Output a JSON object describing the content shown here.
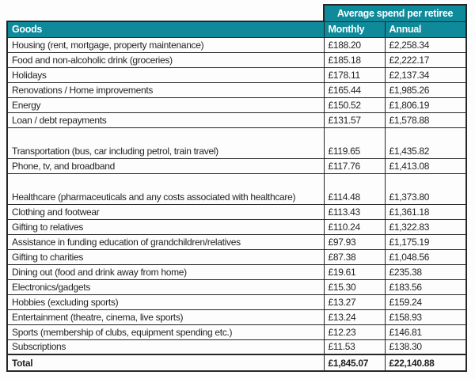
{
  "chart_data": {
    "type": "table",
    "title": "Average spend per retiree",
    "columns": [
      "Goods",
      "Monthly",
      "Annual"
    ],
    "rows": [
      {
        "goods": "Housing (rent, mortgage, property maintenance)",
        "monthly": "£188.20",
        "annual": "£2,258.34",
        "tall": false
      },
      {
        "goods": "Food and non-alcoholic drink (groceries)",
        "monthly": "£185.18",
        "annual": "£2,222.17",
        "tall": false
      },
      {
        "goods": "Holidays",
        "monthly": "£178.11",
        "annual": "£2,137.34",
        "tall": false
      },
      {
        "goods": "Renovations / Home improvements",
        "monthly": "£165.44",
        "annual": "£1,985.26",
        "tall": false
      },
      {
        "goods": "Energy",
        "monthly": "£150.52",
        "annual": "£1,806.19",
        "tall": false
      },
      {
        "goods": "Loan / debt repayments",
        "monthly": "£131.57",
        "annual": "£1,578.88",
        "tall": false
      },
      {
        "goods": "Transportation (bus, car including petrol, train travel)",
        "monthly": "£119.65",
        "annual": "£1,435.82",
        "tall": true
      },
      {
        "goods": "Phone, tv, and broadband",
        "monthly": "£117.76",
        "annual": "£1,413.08",
        "tall": false
      },
      {
        "goods": "Healthcare (pharmaceuticals and any costs associated with healthcare)",
        "monthly": "£114.48",
        "annual": "£1,373.80",
        "tall": true
      },
      {
        "goods": "Clothing and footwear",
        "monthly": "£113.43",
        "annual": "£1,361.18",
        "tall": false
      },
      {
        "goods": "Gifting to relatives",
        "monthly": "£110.24",
        "annual": "£1,322.83",
        "tall": false
      },
      {
        "goods": "Assistance in funding education of grandchildren/relatives",
        "monthly": "£97.93",
        "annual": "£1,175.19",
        "tall": false
      },
      {
        "goods": "Gifting to charities",
        "monthly": "£87.38",
        "annual": "£1,048.56",
        "tall": false
      },
      {
        "goods": "Dining out (food and drink away from home)",
        "monthly": "£19.61",
        "annual": "£235.38",
        "tall": false
      },
      {
        "goods": "Electronics/gadgets",
        "monthly": "£15.30",
        "annual": "£183.56",
        "tall": false
      },
      {
        "goods": "Hobbies (excluding sports)",
        "monthly": "£13.27",
        "annual": "£159.24",
        "tall": false
      },
      {
        "goods": "Entertainment (theatre, cinema, live sports)",
        "monthly": "£13.24",
        "annual": "£158.93",
        "tall": false
      },
      {
        "goods": "Sports (membership of clubs, equipment spending etc.)",
        "monthly": "£12.23",
        "annual": "£146.81",
        "tall": false
      },
      {
        "goods": "Subscriptions",
        "monthly": "£11.53",
        "annual": "£138.30",
        "tall": false
      }
    ],
    "total": {
      "goods": "Total",
      "monthly": "£1,845.07",
      "annual": "£22,140.88"
    },
    "legend_position": "none",
    "grid": "full-cell-borders"
  },
  "colors": {
    "teal_header": "#0e8a9b",
    "border": "#262626",
    "text": "#231f20",
    "header_text": "#ffffff"
  }
}
